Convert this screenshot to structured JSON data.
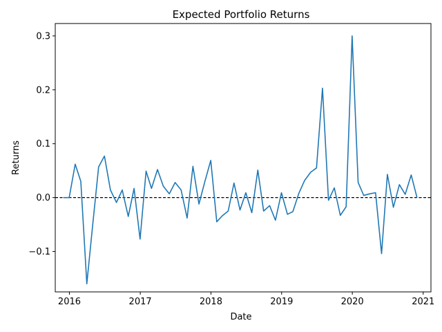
{
  "chart_data": {
    "type": "line",
    "title": "Expected Portfolio Returns",
    "xlabel": "Date",
    "ylabel": "Returns",
    "x_ticks": [
      "2016",
      "2017",
      "2018",
      "2019",
      "2020",
      "2021"
    ],
    "y_ticks": [
      {
        "value": -0.1,
        "label": "−0.1"
      },
      {
        "value": 0.0,
        "label": "0.0"
      },
      {
        "value": 0.1,
        "label": "0.1"
      },
      {
        "value": 0.2,
        "label": "0.2"
      },
      {
        "value": 0.3,
        "label": "0.3"
      }
    ],
    "xlim": [
      "2015-10-20",
      "2021-02-10"
    ],
    "ylim": [
      -0.175,
      0.323
    ],
    "grid": false,
    "line_color": "#1f77b4",
    "baseline": {
      "value": 0.0,
      "style": "dashed",
      "color": "#000000"
    },
    "series": [
      {
        "dates": [
          "2015-11-30",
          "2015-12-31",
          "2016-01-31",
          "2016-02-29",
          "2016-03-31",
          "2016-04-30",
          "2016-05-31",
          "2016-06-30",
          "2016-07-31",
          "2016-08-31",
          "2016-09-30",
          "2016-10-31",
          "2016-11-30",
          "2016-12-31",
          "2017-01-31",
          "2017-02-28",
          "2017-03-31",
          "2017-04-30",
          "2017-05-31",
          "2017-06-30",
          "2017-07-31",
          "2017-08-31",
          "2017-09-30",
          "2017-10-31",
          "2017-11-30",
          "2017-12-31",
          "2018-01-31",
          "2018-02-28",
          "2018-03-31",
          "2018-04-30",
          "2018-05-31",
          "2018-06-30",
          "2018-07-31",
          "2018-08-31",
          "2018-09-30",
          "2018-10-31",
          "2018-11-30",
          "2018-12-31",
          "2019-01-31",
          "2019-02-28",
          "2019-03-31",
          "2019-04-30",
          "2019-05-31",
          "2019-06-30",
          "2019-07-31",
          "2019-08-31",
          "2019-09-30",
          "2019-10-31",
          "2019-11-30",
          "2019-12-31",
          "2020-01-31",
          "2020-02-29",
          "2020-03-31",
          "2020-04-30",
          "2020-05-31",
          "2020-06-30",
          "2020-07-31",
          "2020-08-31",
          "2020-09-30",
          "2020-10-31",
          "2020-11-30"
        ],
        "values": [
          0.0,
          0.0,
          0.062,
          0.03,
          -0.16,
          -0.052,
          0.057,
          0.077,
          0.014,
          -0.009,
          0.014,
          -0.035,
          0.017,
          -0.077,
          0.049,
          0.017,
          0.052,
          0.021,
          0.007,
          0.028,
          0.014,
          -0.038,
          0.058,
          -0.012,
          0.029,
          0.069,
          -0.045,
          -0.034,
          -0.025,
          0.027,
          -0.023,
          0.009,
          -0.028,
          0.051,
          -0.025,
          -0.015,
          -0.042,
          0.009,
          -0.031,
          -0.026,
          0.008,
          0.032,
          0.047,
          0.055,
          0.203,
          -0.005,
          0.018,
          -0.033,
          -0.017,
          0.3,
          0.028,
          0.004,
          0.007,
          0.009,
          -0.104,
          0.043,
          -0.018,
          0.024,
          0.006,
          0.042,
          0.0
        ]
      }
    ]
  }
}
